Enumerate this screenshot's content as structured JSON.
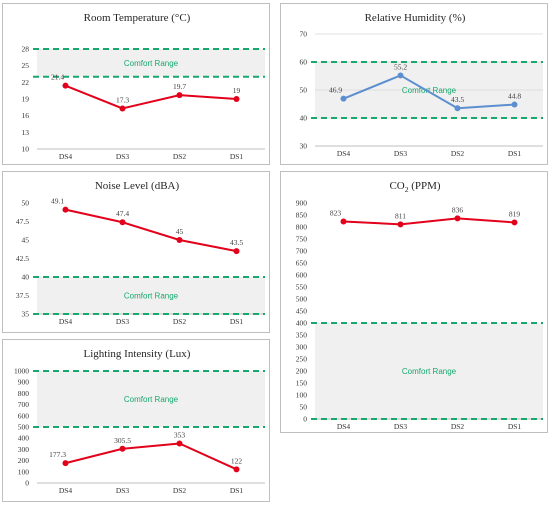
{
  "colors": {
    "red": "#e3001b",
    "blue": "#5b8fcf",
    "green": "#16a86f",
    "band": "#f0f0f0"
  },
  "chart_data": [
    {
      "id": "temp",
      "type": "line",
      "title": "Room Temperature (°C)",
      "categories": [
        "DS4",
        "DS3",
        "DS2",
        "DS1"
      ],
      "series": [
        {
          "values": [
            21.4,
            17.3,
            19.7,
            19
          ],
          "color": "#e3001b"
        }
      ],
      "ylim": [
        10,
        28
      ],
      "yticks": [
        "10",
        "13",
        "16",
        "19",
        "22",
        "25",
        "28"
      ],
      "ytick_values": [
        10,
        13,
        16,
        19,
        22,
        25,
        28
      ],
      "comfort_range": [
        23,
        28
      ],
      "comfort_label": "Comfort Range",
      "grid": false
    },
    {
      "id": "hum",
      "type": "line",
      "title": "Relative Humidity (%)",
      "categories": [
        "DS4",
        "DS3",
        "DS2",
        "DS1"
      ],
      "series": [
        {
          "values": [
            46.9,
            55.2,
            43.5,
            44.8
          ],
          "color": "#5b8fcf"
        }
      ],
      "ylim": [
        30,
        70
      ],
      "yticks": [
        "30",
        "40",
        "50",
        "60",
        "70"
      ],
      "ytick_values": [
        30,
        40,
        50,
        60,
        70
      ],
      "comfort_range": [
        40,
        60
      ],
      "comfort_label": "Comfort Range",
      "grid": true
    },
    {
      "id": "noise",
      "type": "line",
      "title": "Noise Level (dBA)",
      "categories": [
        "DS4",
        "DS3",
        "DS2",
        "DS1"
      ],
      "series": [
        {
          "values": [
            49.1,
            47.4,
            45,
            43.5
          ],
          "color": "#e3001b"
        }
      ],
      "ylim": [
        35,
        50
      ],
      "yticks": [
        "35",
        "37.5",
        "40",
        "42.5",
        "45",
        "47.5",
        "50"
      ],
      "ytick_values": [
        35,
        37.5,
        40,
        42.5,
        45,
        47.5,
        50
      ],
      "comfort_range": [
        35,
        40
      ],
      "comfort_label": "Comfort Range",
      "grid": false
    },
    {
      "id": "co2",
      "type": "line",
      "title": "CO",
      "title_sub": "2",
      "title_suffix": " (PPM)",
      "categories": [
        "DS4",
        "DS3",
        "DS2",
        "DS1"
      ],
      "series": [
        {
          "values": [
            823,
            811,
            836,
            819
          ],
          "color": "#e3001b"
        }
      ],
      "ylim": [
        0,
        900
      ],
      "yticks": [
        "0",
        "50",
        "100",
        "150",
        "200",
        "250",
        "300",
        "350",
        "400",
        "450",
        "500",
        "550",
        "600",
        "650",
        "700",
        "750",
        "800",
        "850",
        "900"
      ],
      "ytick_values": [
        0,
        50,
        100,
        150,
        200,
        250,
        300,
        350,
        400,
        450,
        500,
        550,
        600,
        650,
        700,
        750,
        800,
        850,
        900
      ],
      "comfort_range": [
        0,
        400
      ],
      "comfort_label": "Comfort Range",
      "grid": false
    },
    {
      "id": "light",
      "type": "line",
      "title": "Lighting Intensity (Lux)",
      "categories": [
        "DS4",
        "DS3",
        "DS2",
        "DS1"
      ],
      "series": [
        {
          "values": [
            177.3,
            305.5,
            353,
            122
          ],
          "color": "#e3001b"
        }
      ],
      "ylim": [
        0,
        1000
      ],
      "yticks": [
        "0",
        "100",
        "200",
        "300",
        "400",
        "500",
        "600",
        "700",
        "800",
        "900",
        "1000"
      ],
      "ytick_values": [
        0,
        100,
        200,
        300,
        400,
        500,
        600,
        700,
        800,
        900,
        1000
      ],
      "comfort_range": [
        500,
        1000
      ],
      "comfort_label": "Comfort Range",
      "grid": false
    }
  ]
}
